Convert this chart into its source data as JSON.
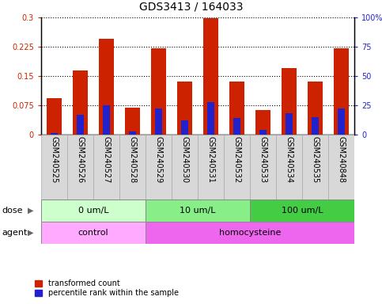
{
  "title": "GDS3413 / 164033",
  "samples": [
    "GSM240525",
    "GSM240526",
    "GSM240527",
    "GSM240528",
    "GSM240529",
    "GSM240530",
    "GSM240531",
    "GSM240532",
    "GSM240533",
    "GSM240534",
    "GSM240535",
    "GSM240848"
  ],
  "transformed_count": [
    0.093,
    0.165,
    0.245,
    0.068,
    0.22,
    0.135,
    0.298,
    0.135,
    0.063,
    0.17,
    0.135,
    0.22
  ],
  "percentile_rank_pct": [
    1.5,
    17,
    25,
    2.5,
    22,
    12,
    28,
    14,
    4,
    18,
    15,
    22
  ],
  "ylim_left": [
    0,
    0.3
  ],
  "ylim_right": [
    0,
    100
  ],
  "yticks_left": [
    0,
    0.075,
    0.15,
    0.225,
    0.3
  ],
  "yticks_left_labels": [
    "0",
    "0.075",
    "0.15",
    "0.225",
    "0.3"
  ],
  "yticks_right": [
    0,
    25,
    50,
    75,
    100
  ],
  "yticks_right_labels": [
    "0",
    "25",
    "50",
    "75",
    "100%"
  ],
  "bar_color_red": "#cc2200",
  "bar_color_blue": "#2222cc",
  "bar_width": 0.55,
  "blue_bar_width": 0.28,
  "dose_groups": [
    {
      "label": "0 um/L",
      "start": 0,
      "end": 4,
      "color": "#ccffcc"
    },
    {
      "label": "10 um/L",
      "start": 4,
      "end": 8,
      "color": "#88ee88"
    },
    {
      "label": "100 um/L",
      "start": 8,
      "end": 12,
      "color": "#44cc44"
    }
  ],
  "agent_groups": [
    {
      "label": "control",
      "start": 0,
      "end": 4,
      "color": "#ffaaff"
    },
    {
      "label": "homocysteine",
      "start": 4,
      "end": 12,
      "color": "#ee66ee"
    }
  ],
  "dose_label": "dose",
  "agent_label": "agent",
  "legend_red": "transformed count",
  "legend_blue": "percentile rank within the sample",
  "title_fontsize": 10,
  "tick_fontsize": 7,
  "label_fontsize": 8,
  "row_fontsize": 8
}
